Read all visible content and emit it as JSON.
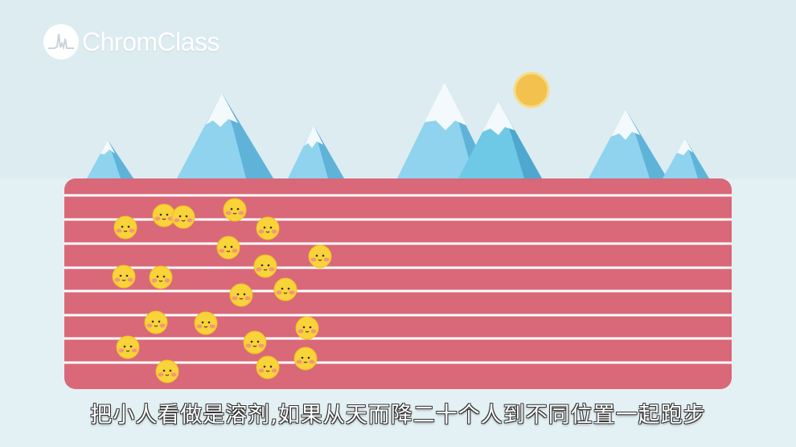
{
  "brand": {
    "name": "ChromClass",
    "icon": "chromatogram-logo-icon"
  },
  "subtitle": "把小人看做是溶剂,如果从天而降二十个人到不同位置一起跑步",
  "colors": {
    "sky": "#dcecf1",
    "ground": "#e3f1f5",
    "track": "#d96878",
    "lane_line": "#ffffff",
    "sun": "#f2c14e",
    "face": "#f9d33a",
    "mountain_light": "#8fd3ee",
    "mountain_dark": "#5fb3d9",
    "snow": "#f4f9fb"
  },
  "track": {
    "lanes": 8
  },
  "runners": {
    "count": 20
  }
}
